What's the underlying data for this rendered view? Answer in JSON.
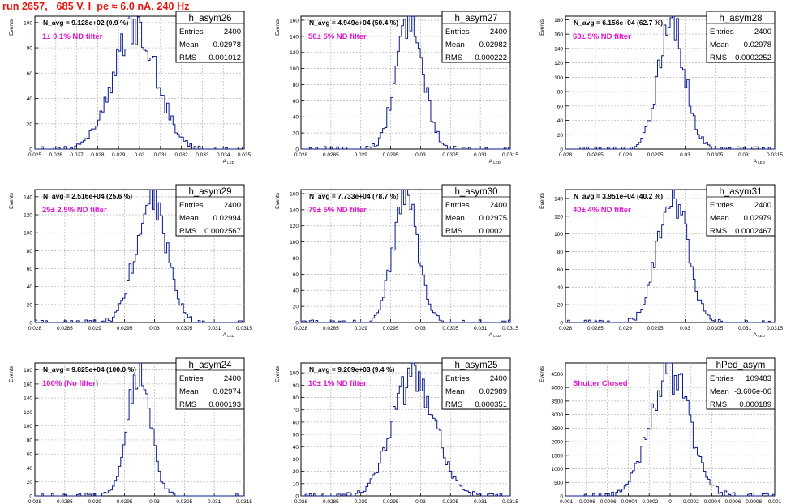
{
  "header": {
    "run_title": "run 2657,   685 V, I_pe ≈ 6.0 nA, 240 Hz"
  },
  "colors": {
    "title": "#e8140a",
    "histogram": "#0a1a8c",
    "annotation": "#e01ad0",
    "grid": "#b4b4b4"
  },
  "chart_data": [
    {
      "type": "histogram",
      "title": "h_asym26",
      "avg_label": "N_avg = 9.128e+02 (0.9 %)",
      "filter_label": "1± 0.1% ND filter",
      "stats": [
        {
          "k": "Entries",
          "v": "2400"
        },
        {
          "k": "Mean",
          "v": "0.02978"
        },
        {
          "k": "RMS",
          "v": "0.001012"
        }
      ],
      "xlabel": "A_LED",
      "ylabel": "Events",
      "xlim": [
        0.025,
        0.035
      ],
      "ylim": [
        0,
        105
      ],
      "xticks": [
        0.025,
        0.026,
        0.027,
        0.028,
        0.029,
        0.03,
        0.031,
        0.032,
        0.033,
        0.034,
        0.035
      ],
      "xtick_labels": [
        "0.025",
        "0.026",
        "0.027",
        "0.028",
        "0.029",
        "0.03",
        "0.031",
        "0.032",
        "0.033",
        "0.034",
        "0.035"
      ],
      "yticks": [
        0,
        20,
        40,
        60,
        80,
        100
      ],
      "ytick_labels": [
        "0",
        "20",
        "40",
        "60",
        "80",
        "100"
      ],
      "grid": true,
      "mean": 0.02978,
      "sigma": 0.001012,
      "peak": 100,
      "bins": 100
    },
    {
      "type": "histogram",
      "title": "h_asym27",
      "avg_label": "N_avg = 4.949e+04 (50.4 %)",
      "filter_label": "50± 5% ND filter",
      "stats": [
        {
          "k": "Entries",
          "v": "2400"
        },
        {
          "k": "Mean",
          "v": "0.02982"
        },
        {
          "k": "RMS",
          "v": "0.000222"
        }
      ],
      "xlabel": "A_LED",
      "ylabel": "Events",
      "xlim": [
        0.028,
        0.0315
      ],
      "ylim": [
        0,
        165
      ],
      "xticks": [
        0.028,
        0.0285,
        0.029,
        0.0295,
        0.03,
        0.0305,
        0.031,
        0.0315
      ],
      "xtick_labels": [
        "0.028",
        "0.0285",
        "0.029",
        "0.0295",
        "0.03",
        "0.0305",
        "0.031",
        "0.0315"
      ],
      "yticks": [
        0,
        20,
        40,
        60,
        80,
        100,
        120,
        140,
        160
      ],
      "ytick_labels": [
        "0",
        "20",
        "40",
        "60",
        "80",
        "100",
        "120",
        "140",
        "160"
      ],
      "grid": true,
      "mean": 0.02982,
      "sigma": 0.000222,
      "peak": 165,
      "bins": 100
    },
    {
      "type": "histogram",
      "title": "h_asym28",
      "avg_label": "N_avg = 6.156e+04 (62.7 %)",
      "filter_label": "63± 5% ND filter",
      "stats": [
        {
          "k": "Entries",
          "v": "2400"
        },
        {
          "k": "Mean",
          "v": "0.02978"
        },
        {
          "k": "RMS",
          "v": "0.0002252"
        }
      ],
      "xlabel": "A_LED",
      "ylabel": "Events",
      "xlim": [
        0.028,
        0.0315
      ],
      "ylim": [
        0,
        185
      ],
      "xticks": [
        0.028,
        0.0285,
        0.029,
        0.0295,
        0.03,
        0.0305,
        0.031,
        0.0315
      ],
      "xtick_labels": [
        "0.028",
        "0.0285",
        "0.029",
        "0.0295",
        "0.03",
        "0.0305",
        "0.031",
        "0.0315"
      ],
      "yticks": [
        0,
        20,
        40,
        60,
        80,
        100,
        120,
        140,
        160,
        180
      ],
      "ytick_labels": [
        "0",
        "20",
        "40",
        "60",
        "80",
        "100",
        "120",
        "140",
        "160",
        "180"
      ],
      "grid": true,
      "mean": 0.02978,
      "sigma": 0.0002252,
      "peak": 172,
      "bins": 100
    },
    {
      "type": "histogram",
      "title": "h_asym29",
      "avg_label": "N_avg = 2.516e+04 (25.6 %)",
      "filter_label": "25± 2.5% ND filter",
      "stats": [
        {
          "k": "Entries",
          "v": "2400"
        },
        {
          "k": "Mean",
          "v": "0.02994"
        },
        {
          "k": "RMS",
          "v": "0.0002567"
        }
      ],
      "xlabel": "A_LED",
      "ylabel": "Events",
      "xlim": [
        0.028,
        0.0315
      ],
      "ylim": [
        0,
        148
      ],
      "xticks": [
        0.028,
        0.0285,
        0.029,
        0.0295,
        0.03,
        0.0305,
        0.031,
        0.0315
      ],
      "xtick_labels": [
        "0.028",
        "0.0285",
        "0.029",
        "0.0295",
        "0.03",
        "0.0305",
        "0.031",
        "0.0315"
      ],
      "yticks": [
        0,
        20,
        40,
        60,
        80,
        100,
        120,
        140
      ],
      "ytick_labels": [
        "0",
        "20",
        "40",
        "60",
        "80",
        "100",
        "120",
        "140"
      ],
      "grid": true,
      "mean": 0.02994,
      "sigma": 0.0002567,
      "peak": 140,
      "bins": 100
    },
    {
      "type": "histogram",
      "title": "h_asym30",
      "avg_label": "N_avg = 7.733e+04 (78.7 %)",
      "filter_label": "79± 5% ND filter",
      "stats": [
        {
          "k": "Entries",
          "v": "2400"
        },
        {
          "k": "Mean",
          "v": "0.02975"
        },
        {
          "k": "RMS",
          "v": "0.00021"
        }
      ],
      "xlabel": "A_LED",
      "ylabel": "Events",
      "xlim": [
        0.028,
        0.0315
      ],
      "ylim": [
        0,
        165
      ],
      "xticks": [
        0.028,
        0.0285,
        0.029,
        0.0295,
        0.03,
        0.0305,
        0.031,
        0.0315
      ],
      "xtick_labels": [
        "0.028",
        "0.0285",
        "0.029",
        "0.0295",
        "0.03",
        "0.0305",
        "0.031",
        "0.0315"
      ],
      "yticks": [
        0,
        20,
        40,
        60,
        80,
        100,
        120,
        140,
        160
      ],
      "ytick_labels": [
        "0",
        "20",
        "40",
        "60",
        "80",
        "100",
        "120",
        "140",
        "160"
      ],
      "grid": true,
      "mean": 0.02975,
      "sigma": 0.00021,
      "peak": 160,
      "bins": 100
    },
    {
      "type": "histogram",
      "title": "h_asym31",
      "avg_label": "N_avg = 3.951e+04 (40.2 %)",
      "filter_label": "40± 4% ND filter",
      "stats": [
        {
          "k": "Entries",
          "v": "2400"
        },
        {
          "k": "Mean",
          "v": "0.02979"
        },
        {
          "k": "RMS",
          "v": "0.0002467"
        }
      ],
      "xlabel": "A_LED",
      "ylabel": "Events",
      "xlim": [
        0.028,
        0.0315
      ],
      "ylim": [
        0,
        150
      ],
      "xticks": [
        0.028,
        0.0285,
        0.029,
        0.0295,
        0.03,
        0.0305,
        0.031,
        0.0315
      ],
      "xtick_labels": [
        "0.028",
        "0.0285",
        "0.029",
        "0.0295",
        "0.03",
        "0.0305",
        "0.031",
        "0.0315"
      ],
      "yticks": [
        0,
        20,
        40,
        60,
        80,
        100,
        120,
        140
      ],
      "ytick_labels": [
        "0",
        "20",
        "40",
        "60",
        "80",
        "100",
        "120",
        "140"
      ],
      "grid": true,
      "mean": 0.02979,
      "sigma": 0.0002467,
      "peak": 145,
      "bins": 100
    },
    {
      "type": "histogram",
      "title": "h_asym24",
      "avg_label": "N_avg = 9.825e+04 (100.0 %)",
      "filter_label": "100% (No filter)",
      "stats": [
        {
          "k": "Entries",
          "v": "2400"
        },
        {
          "k": "Mean",
          "v": "0.02974"
        },
        {
          "k": "RMS",
          "v": "0.000193"
        }
      ],
      "xlabel": "A_LED",
      "ylabel": "Events",
      "xlim": [
        0.028,
        0.0315
      ],
      "ylim": [
        0,
        190
      ],
      "xticks": [
        0.028,
        0.0285,
        0.029,
        0.0295,
        0.03,
        0.0305,
        0.031,
        0.0315
      ],
      "xtick_labels": [
        "0.028",
        "0.0285",
        "0.029",
        "0.0295",
        "0.03",
        "0.0305",
        "0.031",
        "0.0315"
      ],
      "yticks": [
        0,
        20,
        40,
        60,
        80,
        100,
        120,
        140,
        160,
        180
      ],
      "ytick_labels": [
        "0",
        "20",
        "40",
        "60",
        "80",
        "100",
        "120",
        "140",
        "160",
        "180"
      ],
      "grid": true,
      "mean": 0.02974,
      "sigma": 0.000193,
      "peak": 180,
      "bins": 100
    },
    {
      "type": "histogram",
      "title": "h_asym25",
      "avg_label": "N_avg = 9.209e+03 (9.4 %)",
      "filter_label": "10± 1% ND filter",
      "stats": [
        {
          "k": "Entries",
          "v": "2400"
        },
        {
          "k": "Mean",
          "v": "0.02989"
        },
        {
          "k": "RMS",
          "v": "0.000351"
        }
      ],
      "xlabel": "A_LED",
      "ylabel": "Events",
      "xlim": [
        0.028,
        0.0315
      ],
      "ylim": [
        0,
        108
      ],
      "xticks": [
        0.028,
        0.0285,
        0.029,
        0.0295,
        0.03,
        0.0305,
        0.031,
        0.0315
      ],
      "xtick_labels": [
        "0.028",
        "0.0285",
        "0.029",
        "0.0295",
        "0.03",
        "0.0305",
        "0.031",
        "0.0315"
      ],
      "yticks": [
        0,
        10,
        20,
        30,
        40,
        50,
        60,
        70,
        80,
        90,
        100
      ],
      "ytick_labels": [
        "0",
        "10",
        "20",
        "30",
        "40",
        "50",
        "60",
        "70",
        "80",
        "90",
        "100"
      ],
      "grid": true,
      "mean": 0.02989,
      "sigma": 0.000351,
      "peak": 100,
      "bins": 100
    },
    {
      "type": "histogram",
      "title": "hPed_asym",
      "avg_label": "",
      "filter_label": "Shutter Closed",
      "stats": [
        {
          "k": "Entries",
          "v": "109483"
        },
        {
          "k": "Mean",
          "v": "-3.606e-06"
        },
        {
          "k": "RMS",
          "v": "0.000189"
        }
      ],
      "xlabel": "A_LED",
      "ylabel": "Events",
      "xlim": [
        -0.001,
        0.001
      ],
      "ylim": [
        0,
        4900
      ],
      "xticks": [
        -0.001,
        -0.0008,
        -0.0006,
        -0.0004,
        -0.0002,
        0,
        0.0002,
        0.0004,
        0.0006,
        0.0008,
        0.001
      ],
      "xtick_labels": [
        "-0.001",
        "-0.0008",
        "-0.0006",
        "-0.0004",
        "-0.0002",
        "0",
        "0.0002",
        "0.0004",
        "0.0006",
        "0.0008",
        "0.001"
      ],
      "yticks": [
        0,
        500,
        1000,
        1500,
        2000,
        2500,
        3000,
        3500,
        4000,
        4500
      ],
      "ytick_labels": [
        "0",
        "500",
        "1000",
        "1500",
        "2000",
        "2500",
        "3000",
        "3500",
        "4000",
        "4500"
      ],
      "grid": true,
      "mean": -3.606e-06,
      "sigma": 0.000189,
      "peak": 4600,
      "bins": 100
    }
  ]
}
